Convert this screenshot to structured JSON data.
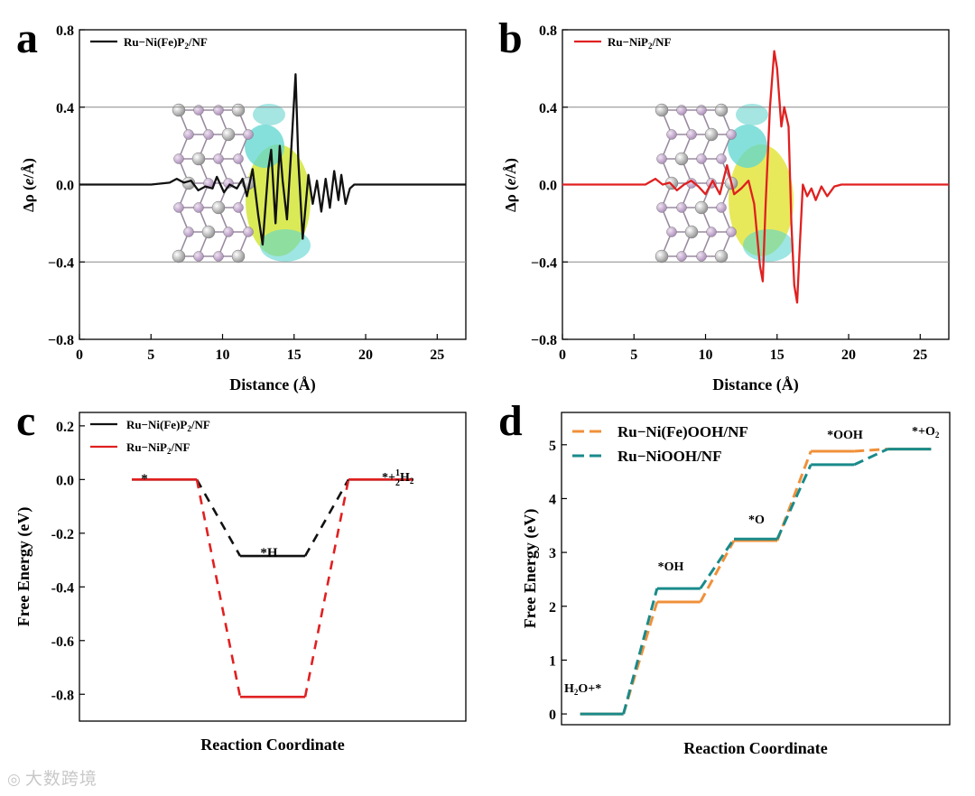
{
  "watermark": {
    "text": "大数跨境",
    "icon": "weibo-logo-icon"
  },
  "chart_data": [
    {
      "panel": "a",
      "type": "line",
      "xlabel": "Distance (Å)",
      "ylabel": "Δρ (e/Å)",
      "xlim": [
        0,
        27
      ],
      "ylim": [
        -0.8,
        0.8
      ],
      "xticks": [
        0,
        5,
        10,
        15,
        20,
        25
      ],
      "yticks": [
        -0.8,
        -0.4,
        0.0,
        0.4,
        0.8
      ],
      "ytick_labels": [
        "−0.8",
        "−0.4",
        "0.0",
        "0.4",
        "0.8"
      ],
      "reference_lines": [
        0.4,
        -0.4
      ],
      "legend": {
        "label": "Ru−Ni(Fe)P2/NF",
        "position": "top-left"
      },
      "series": [
        {
          "name": "Ru−Ni(Fe)P2/NF",
          "color": "#111111",
          "points": [
            [
              0,
              0
            ],
            [
              5,
              0
            ],
            [
              6.3,
              0.01
            ],
            [
              6.8,
              0.03
            ],
            [
              7.3,
              0.01
            ],
            [
              7.8,
              0.02
            ],
            [
              8.3,
              -0.03
            ],
            [
              8.8,
              -0.01
            ],
            [
              9.3,
              -0.02
            ],
            [
              9.6,
              0.04
            ],
            [
              10.1,
              -0.04
            ],
            [
              10.5,
              0.0
            ],
            [
              11.0,
              -0.02
            ],
            [
              11.4,
              0.03
            ],
            [
              11.7,
              -0.06
            ],
            [
              12.1,
              0.08
            ],
            [
              12.5,
              -0.16
            ],
            [
              12.8,
              -0.31
            ],
            [
              13.2,
              0.08
            ],
            [
              13.4,
              0.18
            ],
            [
              13.7,
              -0.2
            ],
            [
              14.0,
              0.2
            ],
            [
              14.2,
              0.02
            ],
            [
              14.5,
              -0.18
            ],
            [
              14.8,
              0.18
            ],
            [
              15.1,
              0.57
            ],
            [
              15.3,
              0.12
            ],
            [
              15.6,
              -0.28
            ],
            [
              16.0,
              0.05
            ],
            [
              16.3,
              -0.1
            ],
            [
              16.6,
              0.02
            ],
            [
              16.9,
              -0.14
            ],
            [
              17.2,
              0.03
            ],
            [
              17.5,
              -0.12
            ],
            [
              17.8,
              0.07
            ],
            [
              18.1,
              -0.08
            ],
            [
              18.3,
              0.05
            ],
            [
              18.6,
              -0.1
            ],
            [
              18.9,
              -0.02
            ],
            [
              19.2,
              0.0
            ],
            [
              27,
              0
            ]
          ]
        }
      ]
    },
    {
      "panel": "b",
      "type": "line",
      "xlabel": "Distance (Å)",
      "ylabel": "Δρ (e/Å)",
      "xlim": [
        0,
        27
      ],
      "ylim": [
        -0.8,
        0.8
      ],
      "xticks": [
        0,
        5,
        10,
        15,
        20,
        25
      ],
      "yticks": [
        -0.8,
        -0.4,
        0.0,
        0.4,
        0.8
      ],
      "ytick_labels": [
        "−0.8",
        "−0.4",
        "0.0",
        "0.4",
        "0.8"
      ],
      "reference_lines": [
        0.4,
        -0.4
      ],
      "legend": {
        "label": "Ru−NiP2/NF",
        "position": "top-left"
      },
      "series": [
        {
          "name": "Ru−NiP2/NF",
          "color": "#e02020",
          "points": [
            [
              0,
              0
            ],
            [
              5.8,
              0
            ],
            [
              6.5,
              0.03
            ],
            [
              7.0,
              0.0
            ],
            [
              7.5,
              0.01
            ],
            [
              8.0,
              -0.03
            ],
            [
              8.5,
              0.0
            ],
            [
              9.0,
              0.02
            ],
            [
              9.5,
              -0.01
            ],
            [
              10.0,
              -0.05
            ],
            [
              10.5,
              0.02
            ],
            [
              11.0,
              -0.05
            ],
            [
              11.5,
              0.1
            ],
            [
              12.0,
              -0.05
            ],
            [
              12.5,
              -0.02
            ],
            [
              13.0,
              0.02
            ],
            [
              13.4,
              -0.1
            ],
            [
              13.8,
              -0.42
            ],
            [
              14.0,
              -0.5
            ],
            [
              14.2,
              -0.1
            ],
            [
              14.5,
              0.4
            ],
            [
              14.8,
              0.69
            ],
            [
              15.0,
              0.6
            ],
            [
              15.3,
              0.3
            ],
            [
              15.5,
              0.4
            ],
            [
              15.8,
              0.3
            ],
            [
              16.0,
              -0.2
            ],
            [
              16.2,
              -0.52
            ],
            [
              16.4,
              -0.61
            ],
            [
              16.6,
              -0.3
            ],
            [
              16.8,
              0.0
            ],
            [
              17.1,
              -0.06
            ],
            [
              17.4,
              -0.02
            ],
            [
              17.7,
              -0.08
            ],
            [
              18.1,
              -0.01
            ],
            [
              18.5,
              -0.06
            ],
            [
              19.0,
              -0.01
            ],
            [
              19.5,
              0.0
            ],
            [
              27,
              0
            ]
          ]
        }
      ]
    },
    {
      "panel": "c",
      "type": "line",
      "xlabel": "Reaction Coordinate",
      "ylabel": "Free Energy (eV)",
      "ylim": [
        -0.9,
        0.25
      ],
      "yticks": [
        -0.8,
        -0.6,
        -0.4,
        -0.2,
        0.0,
        0.2
      ],
      "ytick_labels": [
        "-0.8",
        "-0.6",
        "-0.4",
        "-0.2",
        "0.0",
        "0.2"
      ],
      "legend": {
        "labels": [
          "Ru−Ni(Fe)P2/NF",
          "Ru−NiP2/NF"
        ],
        "position": "top-left"
      },
      "states": [
        "*",
        "*H",
        "*+½H2"
      ],
      "series": [
        {
          "name": "Ru−Ni(Fe)P2/NF",
          "color": "#111111",
          "values": [
            0.0,
            -0.285,
            0.0
          ]
        },
        {
          "name": "Ru−NiP2/NF",
          "color": "#e02020",
          "values": [
            0.0,
            -0.81,
            0.0
          ]
        }
      ]
    },
    {
      "panel": "d",
      "type": "line",
      "xlabel": "Reaction Coordinate",
      "ylabel": "Free Energy (eV)",
      "ylim": [
        -0.2,
        5.6
      ],
      "yticks": [
        0,
        1,
        2,
        3,
        4,
        5
      ],
      "ytick_labels": [
        "0",
        "1",
        "2",
        "3",
        "4",
        "5"
      ],
      "legend": {
        "labels": [
          "Ru−Ni(Fe)OOH/NF",
          "Ru−NiOOH/NF"
        ],
        "position": "top-left"
      },
      "states": [
        "H2O+*",
        "*OH",
        "*O",
        "*OOH",
        "*+O2"
      ],
      "series": [
        {
          "name": "Ru−Ni(Fe)OOH/NF",
          "color": "#f0903a",
          "values": [
            0.0,
            2.08,
            3.22,
            4.88,
            4.92
          ]
        },
        {
          "name": "Ru−NiOOH/NF",
          "color": "#1a8a8a",
          "values": [
            0.0,
            2.33,
            3.25,
            4.63,
            4.92
          ]
        }
      ]
    }
  ]
}
